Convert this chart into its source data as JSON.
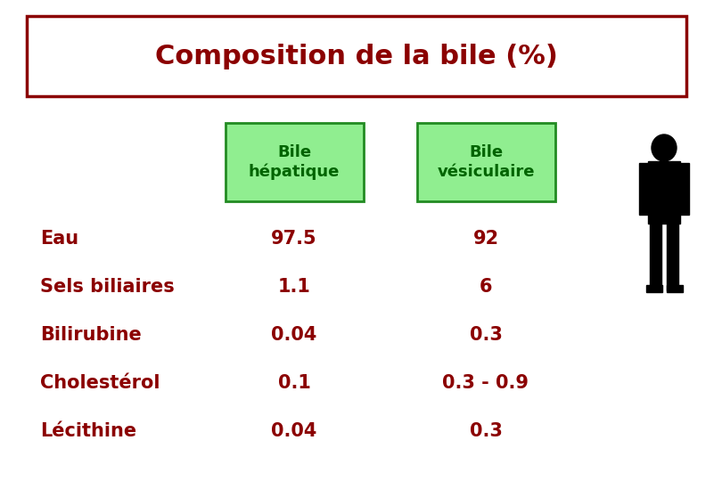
{
  "title": "Composition de la bile (%)",
  "title_color": "#8B0000",
  "title_border_color": "#8B0000",
  "background_color": "#FFFFFF",
  "header_bg_color": "#90EE90",
  "header_border_color": "#228B22",
  "header_text_color": "#006400",
  "col1_header": "Bile\nhépatique",
  "col2_header": "Bile\nvésiculaire",
  "rows": [
    {
      "label": "Eau",
      "col1": "97.5",
      "col2": "92"
    },
    {
      "label": "Sels biliaires",
      "col1": "1.1",
      "col2": "6"
    },
    {
      "label": "Bilirubine",
      "col1": "0.04",
      "col2": "0.3"
    },
    {
      "label": "Cholestérol",
      "col1": "0.1",
      "col2": "0.3 - 0.9"
    },
    {
      "label": "Lécithine",
      "col1": "0.04",
      "col2": "0.3"
    }
  ],
  "row_text_color": "#8B0000",
  "title_fontsize": 22,
  "header_fontsize": 13,
  "row_fontsize": 15,
  "figsize": [
    8.1,
    5.4
  ],
  "dpi": 100
}
